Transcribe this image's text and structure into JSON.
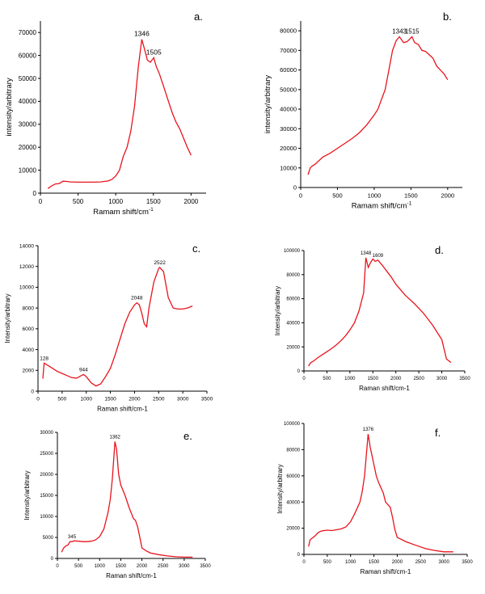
{
  "colors": {
    "curve": "#e8141c",
    "axis": "#000000"
  },
  "chart_data": [
    {
      "type": "line",
      "panel_label": "a.",
      "xlabel": "Ramam shift/cm",
      "xlabel_sup": "-1",
      "ylabel": "intensity/arbitrary",
      "xlim": [
        0,
        2200
      ],
      "ylim": [
        0,
        75000
      ],
      "xticks": [
        0,
        500,
        1000,
        1500,
        2000
      ],
      "yticks": [
        0,
        10000,
        20000,
        30000,
        40000,
        50000,
        60000,
        70000
      ],
      "peaks": [
        {
          "label": "1346",
          "x": 1346,
          "y": 67000
        },
        {
          "label": "1505",
          "x": 1505,
          "y": 59000
        }
      ],
      "x": [
        100,
        150,
        200,
        250,
        300,
        350,
        400,
        500,
        600,
        700,
        800,
        900,
        950,
        1000,
        1050,
        1100,
        1150,
        1200,
        1250,
        1300,
        1346,
        1380,
        1420,
        1460,
        1505,
        1540,
        1580,
        1650,
        1700,
        1750,
        1800,
        1850,
        1900,
        1950,
        2000
      ],
      "y": [
        2000,
        3200,
        4000,
        4200,
        5200,
        5100,
        4900,
        4800,
        4800,
        4800,
        4900,
        5300,
        6000,
        7500,
        10000,
        16000,
        20000,
        27000,
        38000,
        55000,
        67000,
        63000,
        58000,
        57000,
        59000,
        55000,
        52000,
        45000,
        40000,
        35000,
        31000,
        28000,
        24000,
        20000,
        16500
      ]
    },
    {
      "type": "line",
      "panel_label": "b.",
      "xlabel": "Ramam shift/cm",
      "xlabel_sup": "-1",
      "ylabel": "intensity/arbitrary",
      "xlim": [
        0,
        2200
      ],
      "ylim": [
        0,
        85000
      ],
      "xticks": [
        0,
        500,
        1000,
        1500,
        2000
      ],
      "yticks": [
        0,
        10000,
        20000,
        30000,
        40000,
        50000,
        60000,
        70000,
        80000
      ],
      "peaks": [
        {
          "label": "1343",
          "x": 1343,
          "y": 77000
        },
        {
          "label": "1515",
          "x": 1515,
          "y": 77000
        }
      ],
      "x": [
        100,
        130,
        160,
        200,
        300,
        400,
        500,
        600,
        700,
        800,
        900,
        1000,
        1050,
        1100,
        1150,
        1200,
        1250,
        1300,
        1343,
        1400,
        1450,
        1515,
        1550,
        1600,
        1650,
        1700,
        1800,
        1850,
        1900,
        1950,
        2000
      ],
      "y": [
        6500,
        10000,
        11000,
        12000,
        15500,
        17500,
        20000,
        22500,
        25000,
        28000,
        32000,
        37000,
        40000,
        45000,
        50000,
        60000,
        70000,
        75000,
        77000,
        74000,
        74500,
        77000,
        74000,
        73000,
        70000,
        69500,
        66000,
        62000,
        60000,
        58000,
        55000
      ]
    },
    {
      "type": "line",
      "panel_label": "c.",
      "xlabel": "Raman shift/cm-1",
      "ylabel": "Intensity/arbitrary",
      "xlim": [
        0,
        3500
      ],
      "ylim": [
        0,
        14000
      ],
      "xticks": [
        0,
        500,
        1000,
        1500,
        2000,
        2500,
        3000,
        3500
      ],
      "yticks": [
        0,
        2000,
        4000,
        6000,
        8000,
        10000,
        12000,
        14000
      ],
      "peaks": [
        {
          "label": "128",
          "x": 128,
          "y": 2700
        },
        {
          "label": "944",
          "x": 944,
          "y": 1600
        },
        {
          "label": "2048",
          "x": 2048,
          "y": 8500
        },
        {
          "label": "2522",
          "x": 2522,
          "y": 11900
        }
      ],
      "x": [
        100,
        128,
        200,
        300,
        400,
        500,
        600,
        700,
        800,
        900,
        944,
        1000,
        1100,
        1200,
        1300,
        1400,
        1500,
        1600,
        1700,
        1800,
        1900,
        2000,
        2048,
        2100,
        2150,
        2200,
        2250,
        2300,
        2400,
        2500,
        2522,
        2600,
        2700,
        2800,
        2900,
        3000,
        3100,
        3200
      ],
      "y": [
        1200,
        2700,
        2500,
        2200,
        1900,
        1700,
        1500,
        1300,
        1250,
        1500,
        1600,
        1400,
        800,
        500,
        700,
        1400,
        2200,
        3500,
        5000,
        6500,
        7600,
        8300,
        8500,
        8300,
        7500,
        6500,
        6200,
        8000,
        10500,
        11800,
        11900,
        11500,
        9000,
        8000,
        7900,
        7900,
        8000,
        8200
      ]
    },
    {
      "type": "line",
      "panel_label": "d.",
      "xlabel": "Raman shift/cm-1",
      "ylabel": "Intensity/arbitrary",
      "xlim": [
        0,
        3500
      ],
      "ylim": [
        0,
        100000
      ],
      "xticks": [
        0,
        500,
        1000,
        1500,
        2000,
        2500,
        3000,
        3500
      ],
      "yticks": [
        0,
        20000,
        40000,
        60000,
        80000,
        100000
      ],
      "peaks": [
        {
          "label": "1348",
          "x": 1348,
          "y": 94000
        },
        {
          "label": "1609",
          "x": 1609,
          "y": 92000
        }
      ],
      "x": [
        100,
        150,
        200,
        300,
        400,
        500,
        600,
        700,
        800,
        900,
        1000,
        1100,
        1200,
        1300,
        1348,
        1400,
        1450,
        1500,
        1550,
        1609,
        1700,
        1800,
        1900,
        2000,
        2200,
        2400,
        2600,
        2800,
        3000,
        3100,
        3200
      ],
      "y": [
        4000,
        7000,
        8000,
        11000,
        13500,
        16000,
        18500,
        21500,
        25000,
        29000,
        34000,
        40000,
        50000,
        65000,
        94000,
        86000,
        90000,
        93000,
        91000,
        92000,
        88000,
        83000,
        78000,
        72000,
        63000,
        56000,
        48000,
        38000,
        26000,
        10000,
        7000
      ]
    },
    {
      "type": "line",
      "panel_label": "e.",
      "xlabel": "Raman shift/cm-1",
      "ylabel": "Intensity/arbitrary",
      "xlim": [
        0,
        3500
      ],
      "ylim": [
        0,
        30000
      ],
      "xticks": [
        0,
        500,
        1000,
        1500,
        2000,
        2500,
        3000,
        3500
      ],
      "yticks": [
        0,
        5000,
        10000,
        15000,
        20000,
        25000,
        30000
      ],
      "peaks": [
        {
          "label": "345",
          "x": 345,
          "y": 4000
        },
        {
          "label": "1362",
          "x": 1362,
          "y": 27800
        }
      ],
      "x": [
        100,
        150,
        200,
        250,
        300,
        345,
        400,
        500,
        600,
        700,
        800,
        900,
        1000,
        1100,
        1200,
        1250,
        1300,
        1362,
        1400,
        1450,
        1500,
        1600,
        1700,
        1800,
        1850,
        1900,
        1950,
        2000,
        2100,
        2200,
        2400,
        2600,
        2800,
        3000,
        3200
      ],
      "y": [
        1500,
        2500,
        3000,
        3200,
        4000,
        4000,
        4200,
        4100,
        4000,
        4000,
        4100,
        4400,
        5200,
        7000,
        11000,
        14000,
        19000,
        27800,
        26000,
        20000,
        17500,
        15000,
        12000,
        9500,
        9000,
        7500,
        5000,
        2500,
        1800,
        1300,
        900,
        600,
        400,
        300,
        300
      ]
    },
    {
      "type": "line",
      "panel_label": "f.",
      "xlabel": "Raman shift/cm-1",
      "ylabel": "Intensity/arbitrary",
      "xlim": [
        0,
        3500
      ],
      "ylim": [
        0,
        100000
      ],
      "xticks": [
        0,
        500,
        1000,
        1500,
        2000,
        2500,
        3000,
        3500
      ],
      "yticks": [
        0,
        20000,
        40000,
        60000,
        80000,
        100000
      ],
      "peaks": [
        {
          "label": "1376",
          "x": 1376,
          "y": 92000
        }
      ],
      "x": [
        100,
        130,
        160,
        200,
        250,
        300,
        350,
        400,
        500,
        600,
        700,
        800,
        900,
        1000,
        1100,
        1200,
        1250,
        1300,
        1376,
        1420,
        1480,
        1550,
        1600,
        1700,
        1750,
        1800,
        1850,
        1900,
        1950,
        2000,
        2200,
        2400,
        2600,
        2800,
        3000,
        3200
      ],
      "y": [
        6000,
        11000,
        12000,
        13000,
        14500,
        16500,
        17500,
        18000,
        18500,
        18200,
        18800,
        19500,
        21000,
        25000,
        32000,
        40000,
        48000,
        60000,
        92000,
        82000,
        72000,
        60000,
        55000,
        47000,
        40000,
        38000,
        36000,
        28000,
        19000,
        13000,
        9500,
        7000,
        4500,
        3000,
        2000,
        2000
      ]
    }
  ]
}
